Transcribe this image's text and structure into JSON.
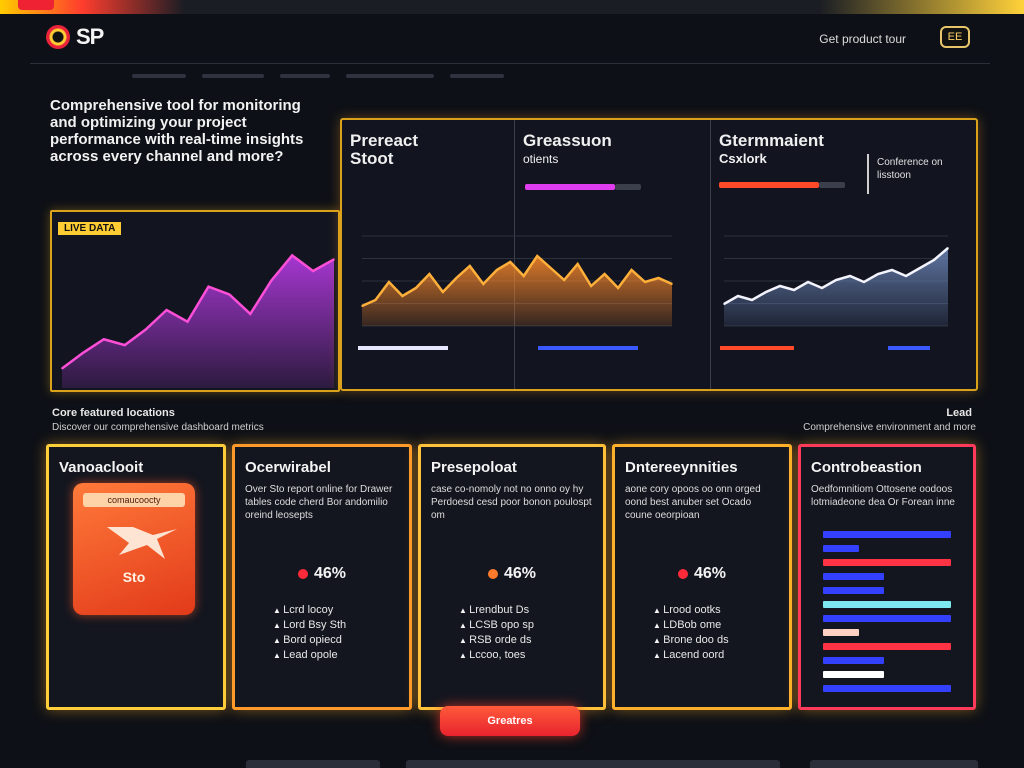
{
  "header": {
    "logo_text": "SP",
    "link_label": "Get product tour",
    "button_label": "EE"
  },
  "intro": {
    "text": "Comprehensive tool for monitoring and optimizing your project performance with real-time insights across every channel and more?",
    "tag": "LIVE DATA"
  },
  "panels": [
    {
      "title": "Prereact",
      "subtitle": "Stoot"
    },
    {
      "title": "Greassuon",
      "subtitle": "otients"
    },
    {
      "title": "Gtermmaient",
      "subtitle": "Csxlork",
      "note": "Conference on lisstoon"
    }
  ],
  "section": {
    "left_label": "Core featured locations",
    "left_sub": "Discover our comprehensive dashboard metrics",
    "right_label": "Lead",
    "right_sub": "Comprehensive environment and more"
  },
  "cards": [
    {
      "title": "Vanoaclooit",
      "tile_label": "comaucoocty",
      "tile_mark": "Sto"
    },
    {
      "title": "Ocerwirabel",
      "desc": "Over Sto report online for Drawer tables code cherd Bor andomilio oreind leosepts",
      "stat": "46%",
      "items": [
        "Lcrd locoy",
        "Lord Bsy Sth",
        "Bord opiecd",
        "Lead opole"
      ]
    },
    {
      "title": "Presepoloat",
      "desc": "case co-nomoly not no onno oy hy Perdoesd cesd poor bonon poulospt om",
      "stat": "46%",
      "items": [
        "Lrendbut Ds",
        "LCSB opo sp",
        "RSB orde ds",
        "Lccoo, toes"
      ]
    },
    {
      "title": "Dntereeynnities",
      "desc": "aone cory opoos oo onn orged oond best anuber set Ocado coune oeorpioan",
      "stat": "46%",
      "items": [
        "Lrood ootks",
        "LDBob ome",
        "Brone doo ds",
        "Lacend oord"
      ]
    },
    {
      "title": "Controbeastion",
      "desc": "Oedfomnitiom Ottosene oodoos lotmiadeone dea Or Forean inne"
    }
  ],
  "cta": {
    "label": "Greatres"
  },
  "chart_data": [
    {
      "type": "area",
      "x": [
        0,
        1,
        2,
        3,
        4,
        5,
        6,
        7,
        8,
        9,
        10,
        11,
        12,
        13
      ],
      "series": [
        {
          "values": [
            10,
            18,
            25,
            22,
            30,
            40,
            34,
            52,
            48,
            38,
            55,
            68,
            60,
            66
          ]
        }
      ],
      "ylim": [
        0,
        80
      ],
      "color": "#c03cf0"
    },
    {
      "type": "area",
      "x": [
        0,
        1,
        2,
        3,
        4,
        5,
        6,
        7,
        8,
        9,
        10,
        11,
        12,
        13,
        14,
        15,
        16,
        17,
        18,
        19,
        20,
        21,
        22,
        23
      ],
      "series": [
        {
          "values": [
            20,
            26,
            44,
            30,
            38,
            52,
            34,
            48,
            60,
            42,
            56,
            64,
            50,
            70,
            58,
            46,
            62,
            40,
            52,
            38,
            56,
            44,
            48,
            42
          ]
        }
      ],
      "ylim": [
        0,
        90
      ],
      "color": "#ff8a2a"
    },
    {
      "type": "area",
      "x": [
        0,
        1,
        2,
        3,
        4,
        5,
        6,
        7,
        8,
        9,
        10,
        11,
        12,
        13,
        14,
        15,
        16
      ],
      "series": [
        {
          "values": [
            22,
            30,
            26,
            34,
            40,
            36,
            44,
            38,
            46,
            50,
            44,
            52,
            56,
            50,
            58,
            66,
            78
          ]
        }
      ],
      "ylim": [
        0,
        90
      ],
      "color": "#6c86b8"
    },
    {
      "type": "bar",
      "categories": [
        "1",
        "2",
        "3",
        "4",
        "5",
        "6",
        "7",
        "8",
        "9",
        "10",
        "11",
        "12"
      ],
      "values": [
        100,
        28,
        100,
        48,
        48,
        100,
        100,
        28,
        100,
        48,
        48,
        100
      ],
      "xlim": [
        0,
        100
      ],
      "colors": [
        "#3340ff",
        "#3340ff",
        "#ff3344",
        "#3340ff",
        "#3340ff",
        "#7ee8f0",
        "#3340ff",
        "#ffd1c2",
        "#ff3344",
        "#3340ff",
        "#ffffff",
        "#3340ff"
      ]
    }
  ]
}
